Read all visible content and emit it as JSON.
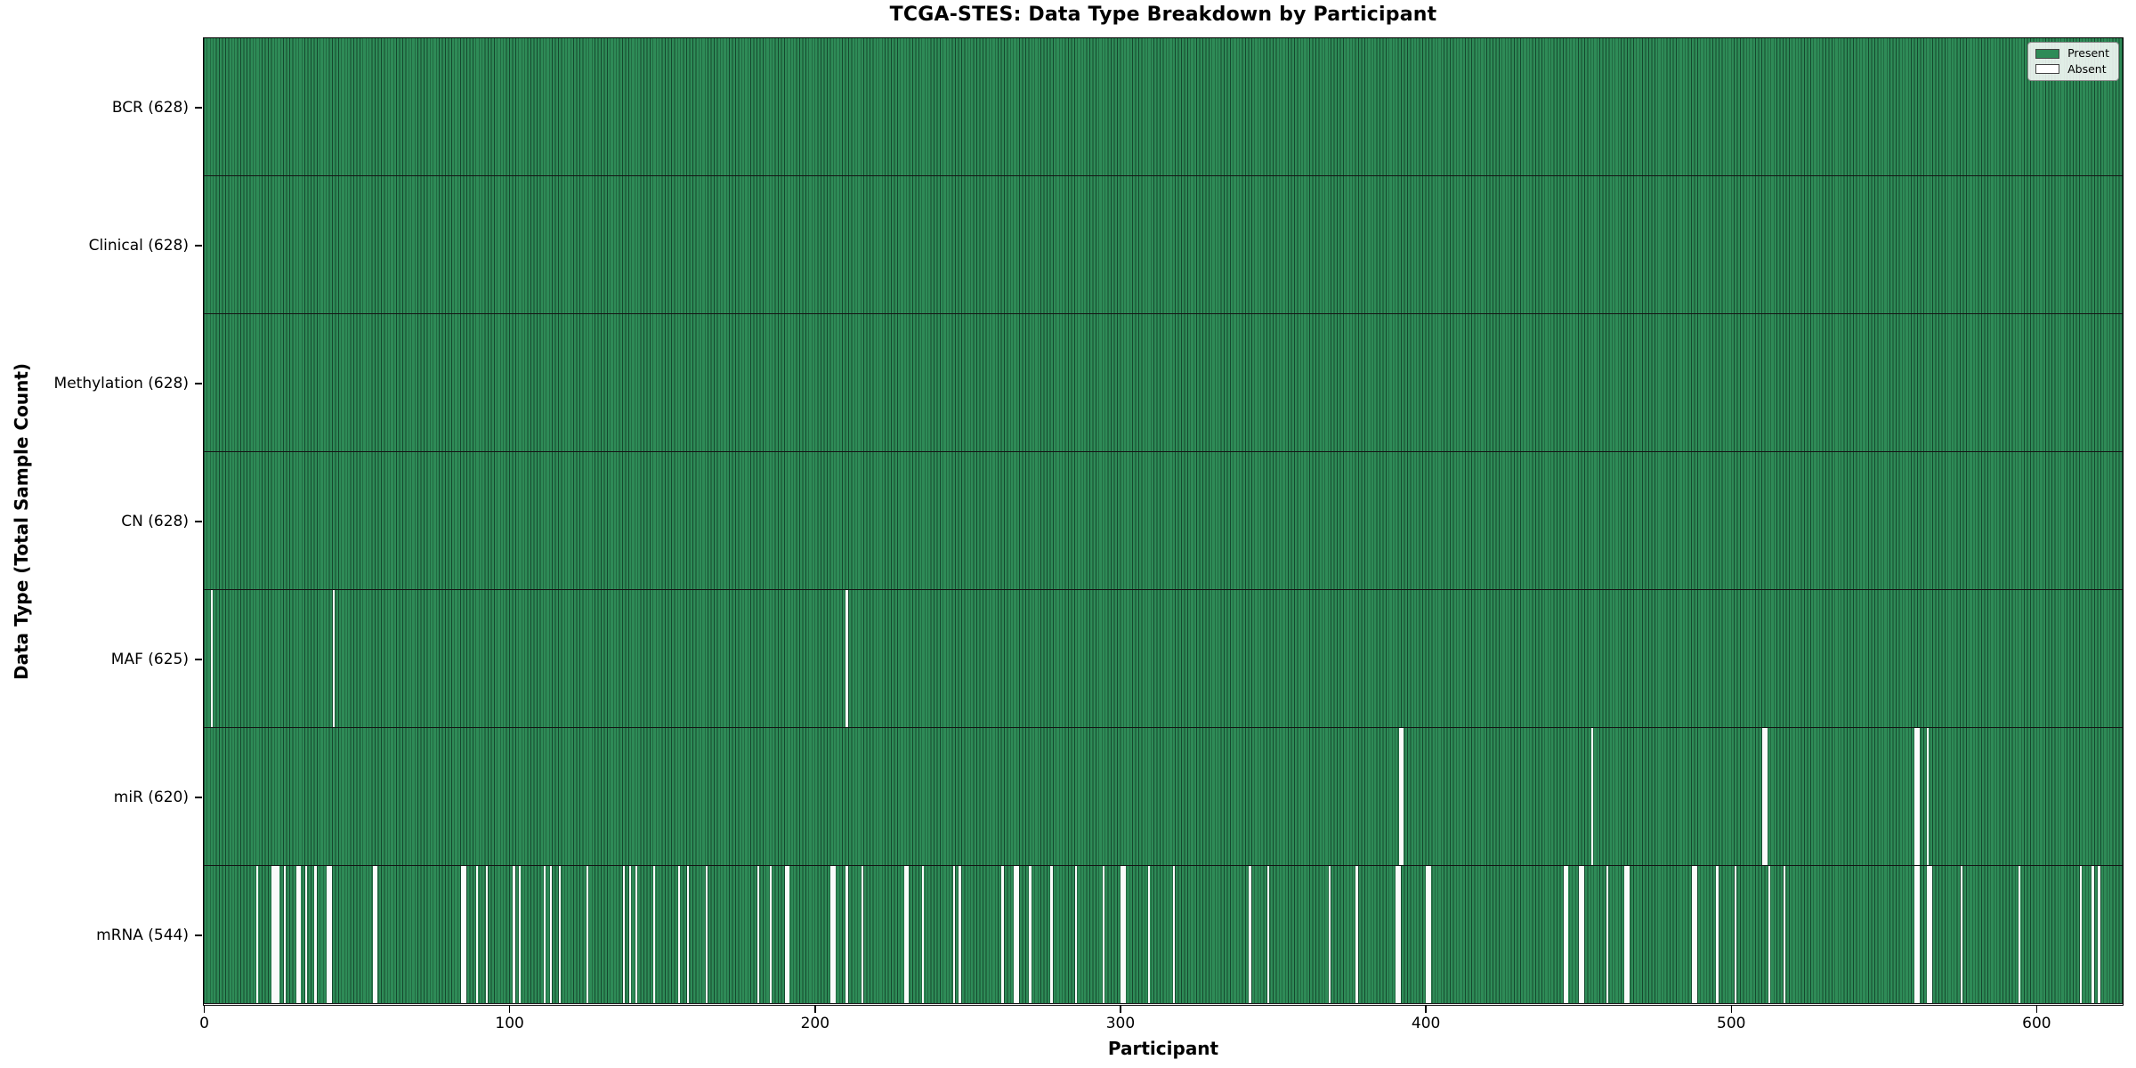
{
  "chart_data": {
    "type": "heatmap",
    "title": "TCGA-STES: Data Type Breakdown by Participant",
    "xlabel": "Participant",
    "ylabel": "Data Type (Total Sample Count)",
    "n_participants": 628,
    "x_ticks": [
      0,
      100,
      200,
      300,
      400,
      500,
      600
    ],
    "legend": [
      {
        "label": "Present",
        "color": "#2e8b57"
      },
      {
        "label": "Absent",
        "color": "#ffffff"
      }
    ],
    "legend_position": "upper right",
    "grid": false,
    "colors": {
      "present": "#2e8b57",
      "bar_edge": "#15482e",
      "absent": "#fbfbfb",
      "row_separator": "#141414"
    },
    "rows": [
      {
        "data_type": "BCR",
        "label": "BCR (628)",
        "present_count": 628,
        "absent_count": 0,
        "absent_participants": []
      },
      {
        "data_type": "Clinical",
        "label": "Clinical (628)",
        "present_count": 628,
        "absent_count": 0,
        "absent_participants": []
      },
      {
        "data_type": "Methylation",
        "label": "Methylation (628)",
        "present_count": 628,
        "absent_count": 0,
        "absent_participants": []
      },
      {
        "data_type": "CN",
        "label": "CN (628)",
        "present_count": 628,
        "absent_count": 0,
        "absent_participants": []
      },
      {
        "data_type": "MAF",
        "label": "MAF (625)",
        "present_count": 625,
        "absent_count": 3,
        "absent_participants": [
          2,
          42,
          210
        ]
      },
      {
        "data_type": "miR",
        "label": "miR (620)",
        "present_count": 620,
        "absent_count": 8,
        "absent_participants": [
          391,
          392,
          454,
          510,
          511,
          560,
          561,
          564
        ]
      },
      {
        "data_type": "mRNA",
        "label": "mRNA (544)",
        "present_count": 544,
        "absent_count": 84,
        "absent_participants": [
          17,
          22,
          23,
          24,
          26,
          30,
          31,
          33,
          36,
          40,
          41,
          55,
          56,
          84,
          85,
          89,
          92,
          101,
          103,
          111,
          113,
          116,
          125,
          137,
          139,
          141,
          147,
          155,
          158,
          164,
          181,
          185,
          190,
          191,
          205,
          206,
          210,
          215,
          229,
          230,
          235,
          245,
          247,
          261,
          265,
          266,
          270,
          277,
          285,
          294,
          300,
          301,
          309,
          317,
          342,
          348,
          368,
          377,
          390,
          391,
          400,
          401,
          445,
          446,
          450,
          451,
          459,
          465,
          466,
          487,
          488,
          495,
          501,
          512,
          517,
          560,
          561,
          564,
          565,
          575,
          594,
          614,
          618,
          620
        ]
      }
    ]
  }
}
